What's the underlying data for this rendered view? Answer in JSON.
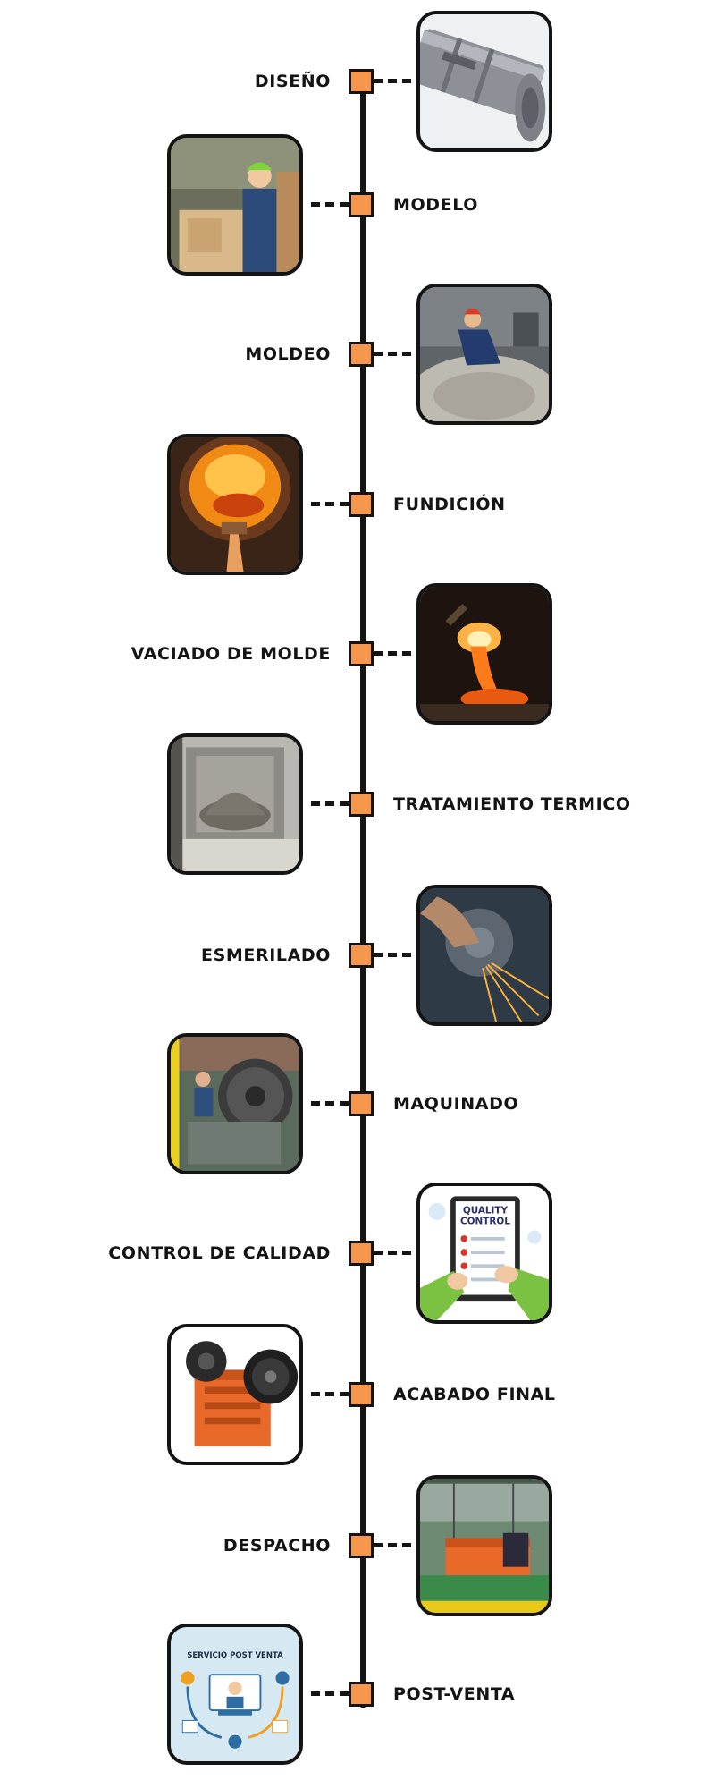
{
  "steps": [
    {
      "label": "DISEÑO"
    },
    {
      "label": "MODELO"
    },
    {
      "label": "MOLDEO"
    },
    {
      "label": "FUNDICIÓN"
    },
    {
      "label": "VACIADO DE MOLDE"
    },
    {
      "label": "TRATAMIENTO TERMICO"
    },
    {
      "label": "ESMERILADO"
    },
    {
      "label": "MAQUINADO"
    },
    {
      "label": "CONTROL DE CALIDAD",
      "image_text": [
        "QUALITY",
        "CONTROL"
      ]
    },
    {
      "label": "ACABADO FINAL"
    },
    {
      "label": "DESPACHO"
    },
    {
      "label": "POST-VENTA",
      "image_text": [
        "SERVICIO POST VENTA"
      ]
    }
  ],
  "colors": {
    "marker": "#f7964b",
    "line": "#141414",
    "background": "#ffffff"
  }
}
